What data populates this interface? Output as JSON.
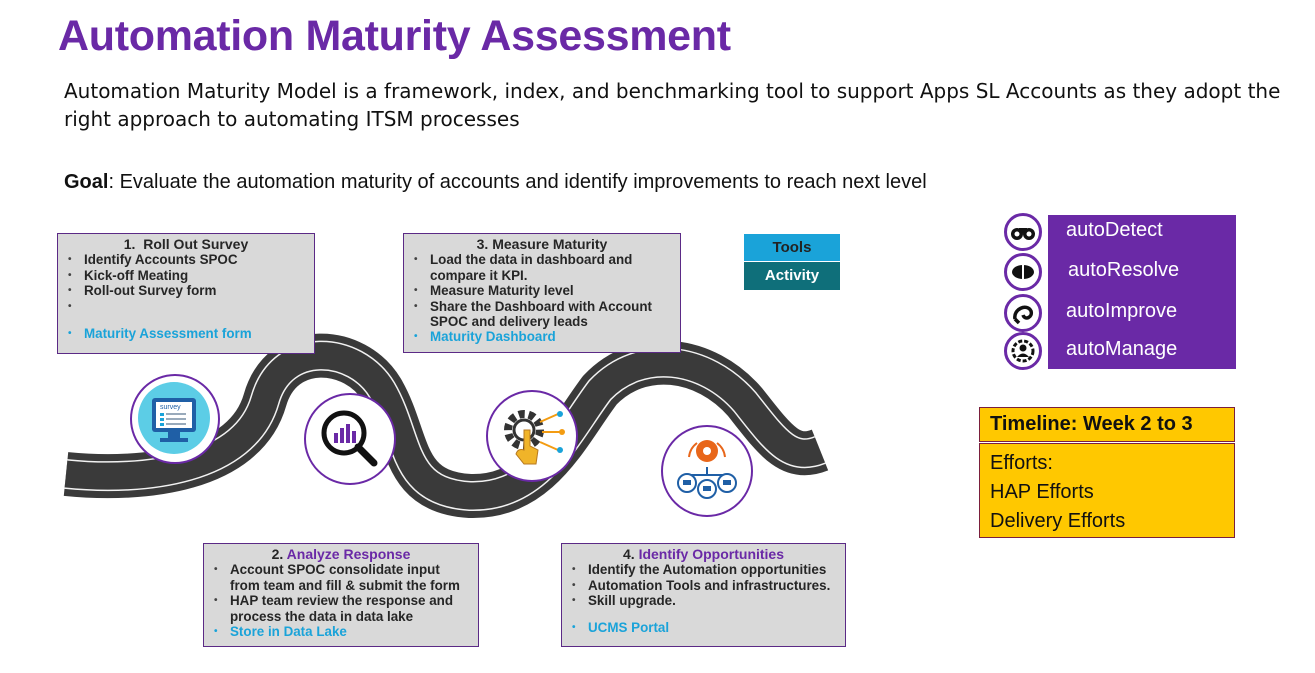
{
  "title": "Automation Maturity Assessment",
  "subtitle": "Automation Maturity Model is a framework, index, and benchmarking tool to support Apps SL Accounts as they adopt the right approach to automating ITSM processes",
  "goal": {
    "label": "Goal",
    "text": ": Evaluate the automation maturity of accounts and identify improvements to reach next level"
  },
  "steps": [
    {
      "number": "1.",
      "title": "Roll Out Survey",
      "items": [
        "Identify Accounts SPOC",
        "Kick-off Meating",
        "Roll-out Survey form"
      ],
      "tool": "Maturity Assessment form"
    },
    {
      "number": "2.",
      "title": "Analyze Response",
      "items": [
        "Account SPOC consolidate input from team and fill & submit the form",
        "HAP team review the response and process the data in data lake"
      ],
      "tool": "Store in Data Lake"
    },
    {
      "number": "3.",
      "title": "Measure Maturity",
      "items": [
        "Load the data in dashboard and compare it KPI.",
        "Measure Maturity level",
        "Share the Dashboard with Account SPOC and delivery leads"
      ],
      "tool": "Maturity Dashboard"
    },
    {
      "number": "4.",
      "title": "Identify Opportunities",
      "items": [
        "Identify the Automation opportunities",
        "Automation Tools and infrastructures.",
        "Skill upgrade."
      ],
      "tool": "UCMS Portal"
    }
  ],
  "legend": {
    "tools": "Tools",
    "activity": "Activity"
  },
  "auto_items": [
    {
      "label": "autoDetect",
      "icon": "binoculars-icon"
    },
    {
      "label": "autoResolve",
      "icon": "pill-icon"
    },
    {
      "label": "autoImprove",
      "icon": "cycle-icon"
    },
    {
      "label": "autoManage",
      "icon": "user-gear-icon"
    }
  ],
  "timeline": {
    "heading": "Timeline: Week 2 to 3",
    "lines": [
      "Efforts:",
      "HAP Efforts",
      "Delivery Efforts"
    ]
  },
  "survey_icon_text": "survey",
  "colors": {
    "title_purple": "#6a29a6",
    "tool_blue": "#1aa3d9",
    "activity_teal": "#0f6f7a",
    "timeline_yellow": "#ffc800",
    "road_dark": "#3a3a3a"
  }
}
